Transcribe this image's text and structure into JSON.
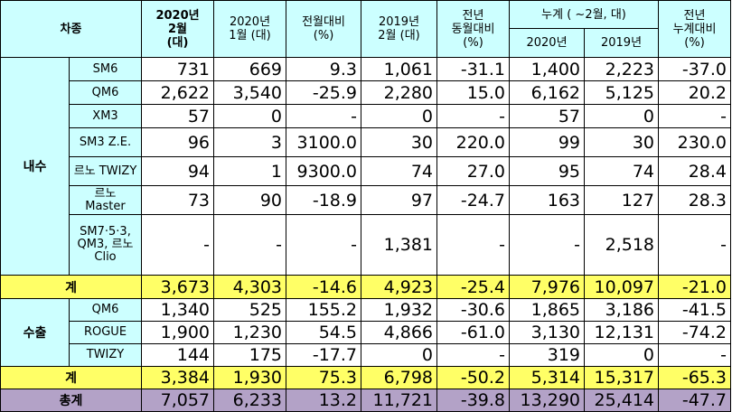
{
  "header": {
    "model_col": "차종",
    "col_feb2020_line1": "2020년",
    "col_feb2020_line2": "2월",
    "col_feb2020_line3": "(대)",
    "col_jan2020_line1": "2020년",
    "col_jan2020_line2": "1월 (대)",
    "col_mom_line1": "전월대비",
    "col_mom_line2": "(%)",
    "col_feb2019_line1": "2019년",
    "col_feb2019_line2": "2월 (대)",
    "col_yoy_line1": "전년",
    "col_yoy_line2": "동월대비",
    "col_yoy_line3": "(%)",
    "cumulative_label": "누계 ( ~2월, 대)",
    "cum_2020": "2020년",
    "cum_2019": "2019년",
    "col_cum_yoy_line1": "전년",
    "col_cum_yoy_line2": "누계대비",
    "col_cum_yoy_line3": "(%)"
  },
  "domestic": {
    "label": "내수",
    "rows": [
      {
        "model": "SM6",
        "values": [
          "731",
          "669",
          "9.3",
          "1,061",
          "-31.1",
          "1,400",
          "2,223",
          "-37.0"
        ]
      },
      {
        "model": "QM6",
        "values": [
          "2,622",
          "3,540",
          "-25.9",
          "2,280",
          "15.0",
          "6,162",
          "5,125",
          "20.2"
        ]
      },
      {
        "model": "XM3",
        "values": [
          "57",
          "0",
          "-",
          "0",
          "-",
          "57",
          "0",
          "-"
        ]
      },
      {
        "model": "SM3 Z.E.",
        "values": [
          "96",
          "3",
          "3100.0",
          "30",
          "220.0",
          "99",
          "30",
          "230.0"
        ]
      },
      {
        "model": "르노 TWIZY",
        "values": [
          "94",
          "1",
          "9300.0",
          "74",
          "27.0",
          "95",
          "74",
          "28.4"
        ]
      },
      {
        "model": "르노 Master",
        "values": [
          "73",
          "90",
          "-18.9",
          "97",
          "-24.7",
          "163",
          "127",
          "28.3"
        ]
      },
      {
        "model": "SM7·5·3, QM3, 르노 Clio",
        "values": [
          "-",
          "-",
          "-",
          "1,381",
          "-",
          "-",
          "2,518",
          "-"
        ]
      }
    ],
    "subtotal": {
      "label": "계",
      "values": [
        "3,673",
        "4,303",
        "-14.6",
        "4,923",
        "-25.4",
        "7,976",
        "10,097",
        "-21.0"
      ]
    }
  },
  "export": {
    "label": "수출",
    "rows": [
      {
        "model": "QM6",
        "values": [
          "1,340",
          "525",
          "155.2",
          "1,932",
          "-30.6",
          "1,865",
          "3,186",
          "-41.5"
        ]
      },
      {
        "model": "ROGUE",
        "values": [
          "1,900",
          "1,230",
          "54.5",
          "4,866",
          "-61.0",
          "3,130",
          "12,131",
          "-74.2"
        ]
      },
      {
        "model": "TWIZY",
        "values": [
          "144",
          "175",
          "-17.7",
          "0",
          "-",
          "319",
          "0",
          "-"
        ]
      }
    ],
    "subtotal": {
      "label": "계",
      "values": [
        "3,384",
        "1,930",
        "75.3",
        "6,798",
        "-50.2",
        "5,314",
        "15,317",
        "-65.3"
      ]
    }
  },
  "total": {
    "label": "총계",
    "values": [
      "7,057",
      "6,233",
      "13.2",
      "11,721",
      "-39.8",
      "13,290",
      "25,414",
      "-47.7"
    ]
  },
  "colors": {
    "header_bg": "#ccffff",
    "subtotal_bg": "#ffff66",
    "total_bg": "#b3a2c7"
  }
}
